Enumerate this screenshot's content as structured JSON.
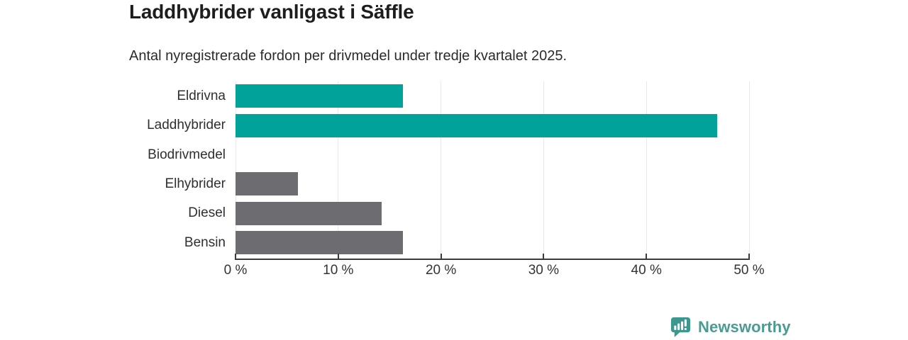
{
  "header": {
    "title": "Laddhybrider vanligast i Säffle",
    "subtitle": "Antal nyregistrerade fordon per drivmedel under tredje kvartalet 2025."
  },
  "chart_data": {
    "type": "bar",
    "orientation": "horizontal",
    "title": "Laddhybrider vanligast i Säffle",
    "subtitle": "Antal nyregistrerade fordon per drivmedel under tredje kvartalet 2025.",
    "categories": [
      "Eldrivna",
      "Laddhybrider",
      "Biodrivmedel",
      "Elhybrider",
      "Diesel",
      "Bensin"
    ],
    "values": [
      16.3,
      46.9,
      0,
      6.1,
      14.2,
      16.3
    ],
    "unit": "%",
    "bar_colors": [
      "#00a29a",
      "#00a29a",
      "#00a29a",
      "#6d6d71",
      "#6d6d71",
      "#6d6d71"
    ],
    "xlim": [
      0,
      50
    ],
    "x_ticks": [
      0,
      10,
      20,
      30,
      40,
      50
    ],
    "x_tick_labels": [
      "0 %",
      "10 %",
      "20 %",
      "30 %",
      "40 %",
      "50 %"
    ],
    "grid": "vertical-gridlines-on",
    "legend": "none",
    "colors": {
      "highlight": "#00a29a",
      "default": "#6d6d71",
      "gridline": "#e9e9e9",
      "axis": "#3b3b3b"
    }
  },
  "footer": {
    "brand": "Newsworthy",
    "logo_icon": "newsworthy-speech-bubble-bar-chart-icon",
    "brand_color": "#4a9b93"
  }
}
